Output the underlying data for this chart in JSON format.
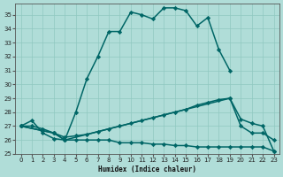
{
  "xlabel": "Humidex (Indice chaleur)",
  "bg_color": "#b0ddd8",
  "line_color": "#006666",
  "xlim": [
    -0.5,
    23.5
  ],
  "ylim": [
    25,
    35.8
  ],
  "yticks": [
    25,
    26,
    27,
    28,
    29,
    30,
    31,
    32,
    33,
    34,
    35
  ],
  "xticks": [
    0,
    1,
    2,
    3,
    4,
    5,
    6,
    7,
    8,
    9,
    10,
    11,
    12,
    13,
    14,
    15,
    16,
    17,
    18,
    19,
    20,
    21,
    22,
    23
  ],
  "s1_x": [
    0,
    1,
    2,
    3,
    4,
    5,
    6,
    7,
    8,
    9,
    10,
    11,
    12,
    13,
    14,
    15,
    16,
    17,
    18,
    19
  ],
  "s1_y": [
    27.0,
    27.4,
    26.5,
    26.1,
    26.0,
    28.0,
    30.4,
    32.0,
    33.8,
    33.8,
    35.2,
    35.0,
    34.7,
    35.5,
    35.5,
    35.3,
    34.2,
    34.8,
    32.5,
    31.0
  ],
  "s2_x": [
    0,
    3,
    4,
    19,
    20,
    21,
    22,
    23
  ],
  "s2_y": [
    27.0,
    26.5,
    26.0,
    29.0,
    27.5,
    27.2,
    27.0,
    25.2
  ],
  "s3_x": [
    0,
    1,
    2,
    3,
    4,
    5,
    6,
    7,
    8,
    9,
    10,
    11,
    12,
    13,
    14,
    15,
    16,
    17,
    18,
    19,
    20,
    21,
    22,
    23
  ],
  "s3_y": [
    27.0,
    27.0,
    26.8,
    26.5,
    26.2,
    26.3,
    26.4,
    26.6,
    26.8,
    27.0,
    27.2,
    27.4,
    27.6,
    27.8,
    28.0,
    28.2,
    28.5,
    28.7,
    28.9,
    29.0,
    27.0,
    26.5,
    26.5,
    26.0
  ],
  "s4_x": [
    0,
    3,
    4,
    5,
    6,
    7,
    8,
    9,
    10,
    11,
    12,
    13,
    14,
    15,
    16,
    17,
    18,
    19,
    20,
    21,
    22,
    23
  ],
  "s4_y": [
    27.0,
    26.5,
    26.0,
    26.0,
    26.0,
    26.0,
    26.0,
    25.8,
    25.8,
    25.8,
    25.7,
    25.7,
    25.6,
    25.6,
    25.5,
    25.5,
    25.5,
    25.5,
    25.5,
    25.5,
    25.5,
    25.2
  ]
}
